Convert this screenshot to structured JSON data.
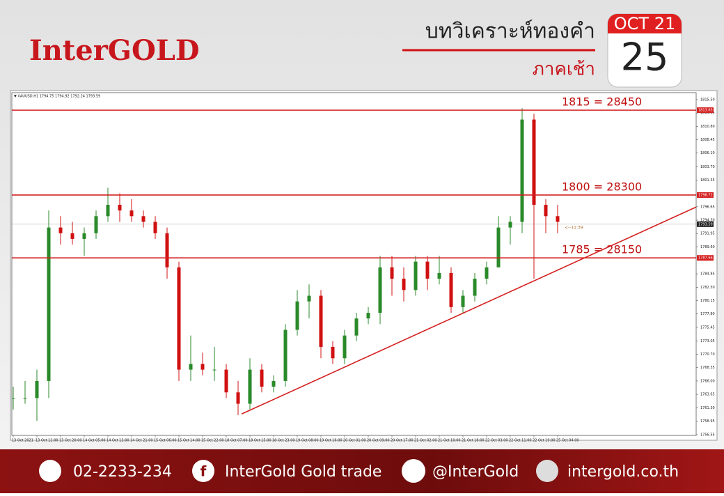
{
  "header": {
    "logo": "InterGOLD",
    "title": "บทวิเคราะห์ทองคำ",
    "subtitle": "ภาคเช้า",
    "calendar_month": "OCT 21",
    "calendar_day": "25"
  },
  "footer": {
    "phone": "02-2233-234",
    "facebook": "InterGold Gold trade",
    "line": "@InterGold",
    "website": "intergold.co.th"
  },
  "chart_data": {
    "type": "candlestick",
    "symbol_info": "▼ XAUUSD,H1  1794.75 1794.92 1792.24 1793.59",
    "categories": [
      "13 Oct 2021",
      null,
      "13 Oct 12:00",
      null,
      "13 Oct 20:00",
      null,
      "14 Oct 05:00",
      null,
      "14 Oct 13:00",
      null,
      "14 Oct 21:00",
      null,
      "15 Oct 06:00",
      null,
      "15 Oct 14:00",
      null,
      "15 Oct 22:00",
      null,
      "18 Oct 07:00",
      null,
      "18 Oct 15:00",
      null,
      "18 Oct 23:00",
      null,
      "19 Oct 08:00",
      null,
      "19 Oct 16:00",
      null,
      "20 Oct 01:00",
      null,
      "20 Oct 09:00",
      null,
      "20 Oct 17:00",
      null,
      "21 Oct 02:00",
      null,
      "21 Oct 10:00",
      null,
      "21 Oct 18:00",
      null,
      "22 Oct 03:00",
      null,
      "22 Oct 11:00",
      null,
      "22 Oct 19:00",
      null,
      "25 Oct 04:00"
    ],
    "open": [
      1763,
      1763,
      1763,
      1766,
      1793,
      1792,
      1791,
      1792,
      1795,
      1797,
      1796,
      1795,
      1794,
      1792,
      1786,
      1768,
      1769,
      1768,
      1768,
      1764,
      1762,
      1768,
      1765,
      1766,
      1775,
      1780,
      1781,
      1772,
      1770,
      1774,
      1777,
      1778,
      1786,
      1784,
      1782,
      1787,
      1784,
      1785,
      1779,
      1781,
      1784,
      1786,
      1793,
      1794,
      1812,
      1797,
      1795
    ],
    "high": [
      1765,
      1766,
      1768,
      1796,
      1795,
      1794,
      1793,
      1796,
      1800,
      1799,
      1798,
      1796,
      1795,
      1793,
      1787,
      1774,
      1771,
      1772,
      1769,
      1766,
      1770,
      1769,
      1767,
      1776,
      1782,
      1783,
      1782,
      1773,
      1775,
      1778,
      1779,
      1788,
      1788,
      1786,
      1788,
      1788,
      1788,
      1786,
      1782,
      1785,
      1787,
      1795,
      1795,
      1814,
      1813,
      1798,
      1797
    ],
    "low": [
      1761,
      1762,
      1759,
      1763,
      1790,
      1790,
      1788,
      1791,
      1794,
      1794,
      1794,
      1793,
      1791,
      1784,
      1766,
      1766,
      1767,
      1766,
      1763,
      1760,
      1761,
      1764,
      1764,
      1765,
      1774,
      1777,
      1770,
      1769,
      1769,
      1773,
      1776,
      1776,
      1781,
      1780,
      1781,
      1782,
      1783,
      1778,
      1778,
      1780,
      1783,
      1786,
      1790,
      1792,
      1784,
      1792,
      1792
    ],
    "close": [
      1763,
      1763,
      1766,
      1793,
      1792,
      1791,
      1792,
      1795,
      1797,
      1796,
      1795,
      1794,
      1792,
      1786,
      1768,
      1769,
      1768,
      1768,
      1764,
      1762,
      1768,
      1765,
      1766,
      1775,
      1780,
      1781,
      1772,
      1770,
      1774,
      1777,
      1778,
      1786,
      1784,
      1782,
      1787,
      1784,
      1785,
      1779,
      1781,
      1784,
      1786,
      1793,
      1794,
      1812,
      1797,
      1795,
      1794
    ],
    "up_color": "#2a8a2a",
    "down_color": "#d01010",
    "ylim": [
      1756.43,
      1816.73
    ],
    "yticks": [
      {
        "value": 1815.5,
        "label": "1815.50"
      },
      {
        "value": 1813.15,
        "label": "1813.15"
      },
      {
        "value": 1810.8,
        "label": "1810.80"
      },
      {
        "value": 1808.45,
        "label": "1808.45"
      },
      {
        "value": 1806.1,
        "label": "1806.10"
      },
      {
        "value": 1803.7,
        "label": "1803.70"
      },
      {
        "value": 1801.35,
        "label": "1801.35"
      },
      {
        "value": 1796.65,
        "label": "1796.65"
      },
      {
        "value": 1794.3,
        "label": "1794.30"
      },
      {
        "value": 1791.95,
        "label": "1791.95"
      },
      {
        "value": 1789.6,
        "label": "1789.60"
      },
      {
        "value": 1784.85,
        "label": "1784.85"
      },
      {
        "value": 1782.5,
        "label": "1782.50"
      },
      {
        "value": 1780.15,
        "label": "1780.15"
      },
      {
        "value": 1777.8,
        "label": "1777.80"
      },
      {
        "value": 1775.45,
        "label": "1775.45"
      },
      {
        "value": 1773.05,
        "label": "1773.05"
      },
      {
        "value": 1770.7,
        "label": "1770.70"
      },
      {
        "value": 1768.35,
        "label": "1768.35"
      },
      {
        "value": 1766.0,
        "label": "1766.00"
      },
      {
        "value": 1763.65,
        "label": "1763.65"
      },
      {
        "value": 1761.3,
        "label": "1761.30"
      },
      {
        "value": 1758.95,
        "label": "1758.95"
      },
      {
        "value": 1756.55,
        "label": "1756.55"
      }
    ],
    "levels": [
      {
        "value": 1813.65,
        "label": "1815 = 28450"
      },
      {
        "value": 1798.72,
        "label": "1800 = 28300"
      },
      {
        "value": 1787.66,
        "label": "1785 = 28150"
      }
    ],
    "level_color": "#d42020",
    "current_price": 1793.59,
    "countdown": "<--11:39",
    "trendline": {
      "x": [
        19.3,
        57.7
      ],
      "y": [
        1760.2,
        1796.6
      ]
    }
  }
}
